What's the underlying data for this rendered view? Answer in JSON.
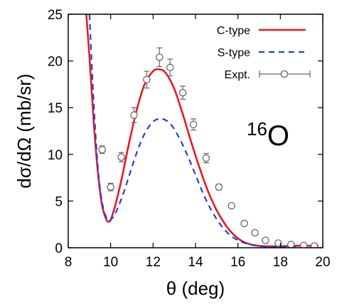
{
  "chart_data": {
    "type": "line",
    "title": "",
    "xlabel": "θ (deg)",
    "ylabel": "dσ/dΩ (mb/sr)",
    "xlim": [
      8,
      20
    ],
    "ylim": [
      0,
      25
    ],
    "xticks": [
      8,
      10,
      12,
      14,
      16,
      18,
      20
    ],
    "yticks": [
      0,
      5,
      10,
      15,
      20,
      25
    ],
    "grid": false,
    "legend_position": "top-right",
    "annotation": {
      "mass_number": "16",
      "element": "O"
    },
    "series": [
      {
        "name": "C-type",
        "style": "solid",
        "color": "#e8191f",
        "x": [
          8.85,
          9.0,
          9.2,
          9.4,
          9.6,
          9.8,
          9.9,
          10.0,
          10.2,
          10.5,
          10.8,
          11.2,
          11.6,
          12.0,
          12.3,
          12.6,
          13.0,
          13.4,
          13.8,
          14.2,
          14.6,
          15.0,
          15.4,
          15.8,
          16.2,
          16.6,
          17.0,
          17.5,
          18.0,
          18.5,
          19.0,
          19.5,
          19.8
        ],
        "y": [
          25.0,
          20.5,
          13.5,
          8.0,
          4.5,
          3.0,
          2.8,
          3.0,
          4.4,
          7.2,
          10.5,
          14.5,
          17.5,
          18.9,
          19.1,
          18.7,
          17.0,
          14.3,
          11.3,
          8.5,
          6.0,
          4.0,
          2.5,
          1.4,
          0.7,
          0.35,
          0.2,
          0.15,
          0.15,
          0.2,
          0.22,
          0.2,
          0.2
        ]
      },
      {
        "name": "S-type",
        "style": "dashed",
        "color": "#1f3fe0",
        "x": [
          9.0,
          9.2,
          9.4,
          9.6,
          9.8,
          9.9,
          10.0,
          10.2,
          10.5,
          10.8,
          11.2,
          11.6,
          12.0,
          12.4,
          12.8,
          13.2,
          13.6,
          14.0,
          14.4,
          14.8,
          15.2,
          15.6,
          16.0,
          16.4,
          16.8,
          17.2,
          17.6,
          18.0,
          18.5,
          19.0,
          19.5,
          19.8
        ],
        "y": [
          25.0,
          15.5,
          8.5,
          4.8,
          3.2,
          2.9,
          3.0,
          3.6,
          5.2,
          7.2,
          10.0,
          12.2,
          13.5,
          13.8,
          13.3,
          11.9,
          10.0,
          7.8,
          5.6,
          3.8,
          2.4,
          1.4,
          0.8,
          0.45,
          0.25,
          0.15,
          0.12,
          0.12,
          0.15,
          0.15,
          0.15,
          0.15
        ]
      },
      {
        "name": "Expt.",
        "style": "points",
        "color": "#666666",
        "x": [
          9.6,
          10.0,
          10.5,
          11.1,
          11.7,
          12.3,
          12.8,
          13.4,
          13.9,
          14.5,
          15.1,
          15.7,
          16.3,
          16.8,
          17.3,
          17.9,
          18.5,
          19.1,
          19.6
        ],
        "y": [
          10.5,
          6.5,
          9.7,
          14.2,
          18.0,
          20.4,
          19.3,
          16.6,
          13.2,
          9.6,
          6.5,
          4.5,
          2.6,
          1.6,
          0.8,
          0.5,
          0.35,
          0.25,
          0.2
        ],
        "yerr": [
          0.4,
          0.4,
          0.5,
          0.8,
          0.9,
          1.0,
          0.9,
          0.7,
          0.6,
          0.5,
          0.3,
          0.2,
          0.15,
          0.1,
          0.1,
          0.08,
          0.05,
          0.05,
          0.05
        ]
      }
    ]
  }
}
